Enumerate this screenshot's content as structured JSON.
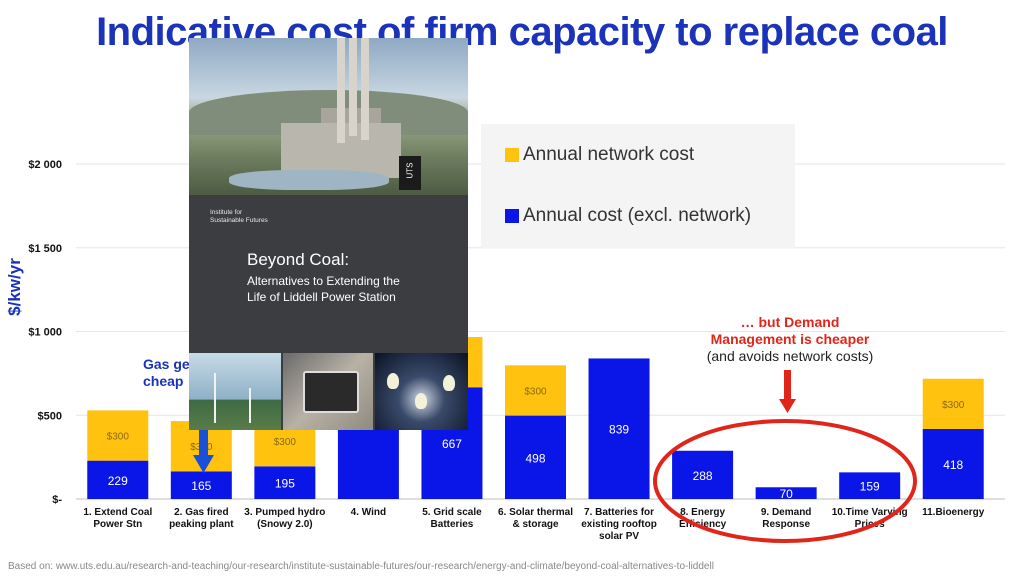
{
  "title": "Indicative cost of firm capacity to replace coal",
  "y_axis_label": "$/kw/yr",
  "legend": {
    "network": "Annual network cost",
    "excl": "Annual cost (excl. network)"
  },
  "colors": {
    "network": "#ffc20e",
    "excl": "#0a16e8",
    "title": "#1a33b8",
    "circle": "#e0261a"
  },
  "annotation_demand": {
    "line1": "… but Demand",
    "line2": "Management  is cheaper",
    "line3": "(and avoids network costs)"
  },
  "annotation_gas": {
    "line1": "Gas ge",
    "line2": "cheap"
  },
  "source_note": "Based on: www.uts.edu.au/research-and-teaching/our-research/institute-sustainable-futures/our-research/energy-and-climate/beyond-coal-alternatives-to-liddell",
  "report_cover": {
    "institute_line1": "Institute for",
    "institute_line2": "Sustainable Futures",
    "logo_text": "UTS",
    "heading": "Beyond Coal:",
    "subtitle_line1": "Alternatives to Extending the",
    "subtitle_line2": "Life of Liddell Power Station"
  },
  "chart_data": {
    "type": "bar",
    "stacked": true,
    "ylim": [
      0,
      2000
    ],
    "yticks": [
      0,
      500,
      1000,
      1500,
      2000
    ],
    "ytick_labels": [
      "$-",
      "$500",
      "$1 000",
      "$1 500",
      "$2 000"
    ],
    "categories": [
      [
        "1. Extend Coal",
        "Power Stn"
      ],
      [
        "2. Gas fired",
        "peaking plant"
      ],
      [
        "3. Pumped hydro",
        "(Snowy 2.0)"
      ],
      [
        "4. Wind"
      ],
      [
        "5. Grid scale",
        "Batteries"
      ],
      [
        "6. Solar thermal",
        "& storage"
      ],
      [
        "7. Batteries for",
        "existing rooftop",
        "solar PV"
      ],
      [
        "8. Energy",
        "Efficiency"
      ],
      [
        "9. Demand",
        "Response"
      ],
      [
        "10.Time Varying",
        "Prices"
      ],
      [
        "11.Bioenergy"
      ]
    ],
    "series": [
      {
        "name": "Annual cost (excl. network)",
        "color": "#0a16e8",
        "values": [
          229,
          165,
          195,
          510,
          667,
          498,
          839,
          288,
          70,
          159,
          418
        ],
        "labels": [
          "229",
          "165",
          "195",
          "",
          "667",
          "498",
          "839",
          "288",
          "70",
          "159",
          "418"
        ]
      },
      {
        "name": "Annual network cost",
        "color": "#ffc20e",
        "values": [
          300,
          300,
          300,
          0,
          300,
          300,
          0,
          0,
          0,
          0,
          300
        ],
        "labels": [
          "$300",
          "$300",
          "$300",
          "",
          "",
          "$300",
          "",
          "",
          "",
          "",
          "$300"
        ]
      }
    ],
    "legend": "top-right",
    "grid": true,
    "highlight": [
      7,
      8,
      9
    ]
  }
}
